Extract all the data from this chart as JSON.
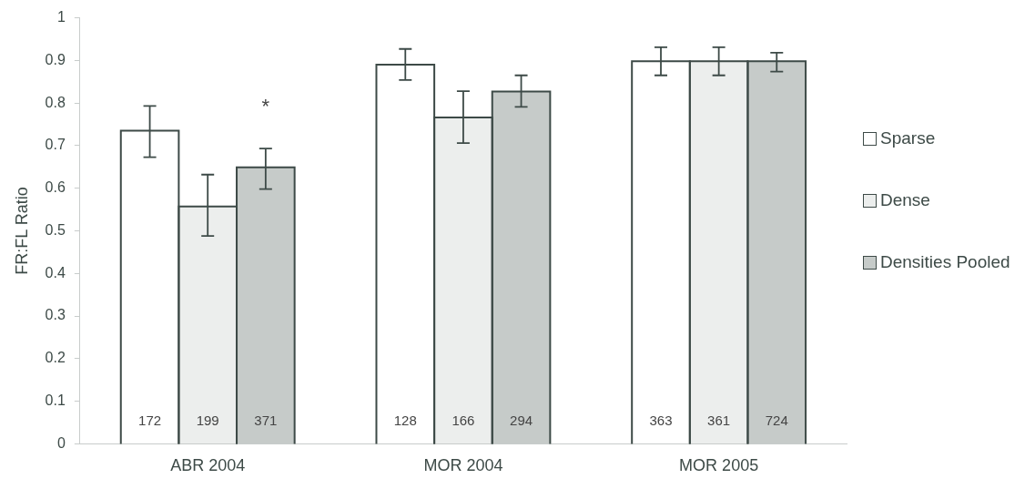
{
  "chart_data": {
    "type": "bar",
    "ylabel": "FR:FL Ratio",
    "categories": [
      "ABR 2004",
      "MOR 2004",
      "MOR 2005"
    ],
    "series": [
      {
        "name": "Sparse",
        "color": "#ffffff",
        "values": [
          0.735,
          0.89,
          0.898
        ],
        "errors": [
          [
            0.673,
            0.793
          ],
          [
            0.854,
            0.927
          ],
          [
            0.865,
            0.931
          ]
        ]
      },
      {
        "name": "Dense",
        "color": "#eceeed",
        "values": [
          0.557,
          0.766,
          0.898
        ],
        "errors": [
          [
            0.488,
            0.632
          ],
          [
            0.706,
            0.828
          ],
          [
            0.865,
            0.931
          ]
        ]
      },
      {
        "name": "Densities Pooled",
        "color": "#c6cbc9",
        "values": [
          0.649,
          0.827,
          0.898
        ],
        "errors": [
          [
            0.598,
            0.693
          ],
          [
            0.791,
            0.865
          ],
          [
            0.874,
            0.918
          ]
        ]
      }
    ],
    "ylim": [
      0,
      1
    ],
    "yticks": [
      0,
      0.1,
      0.2,
      0.3,
      0.4,
      0.5,
      0.6,
      0.7,
      0.8,
      0.9,
      1
    ],
    "grid": false,
    "legend": "right",
    "annotations": [
      "172",
      "199",
      "371",
      "128",
      "166",
      "294",
      "363",
      "361",
      "724",
      "*"
    ]
  }
}
